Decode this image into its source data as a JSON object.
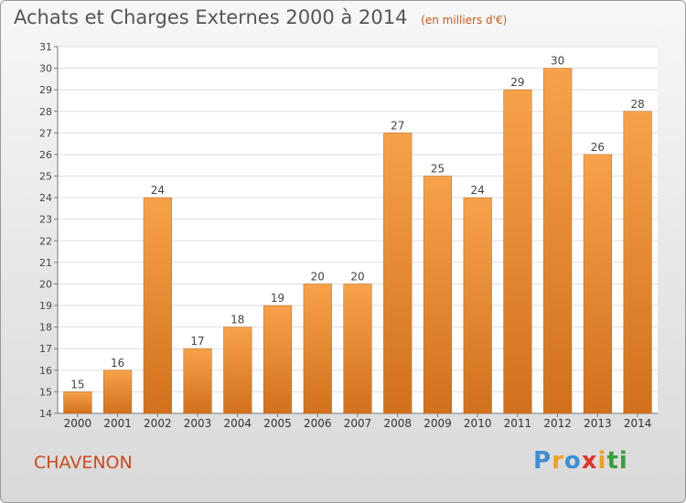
{
  "chart_data": {
    "type": "bar",
    "title": "Achats et Charges Externes 2000 à 2014",
    "subtitle": "(en milliers d'€)",
    "categories": [
      "2000",
      "2001",
      "2002",
      "2003",
      "2004",
      "2005",
      "2006",
      "2007",
      "2008",
      "2009",
      "2010",
      "2011",
      "2012",
      "2013",
      "2014"
    ],
    "values": [
      15,
      16,
      24,
      17,
      18,
      19,
      20,
      20,
      27,
      25,
      24,
      29,
      30,
      26,
      28
    ],
    "ylim": [
      14,
      31
    ],
    "yticks": [
      14,
      15,
      16,
      17,
      18,
      19,
      20,
      21,
      22,
      23,
      24,
      25,
      26,
      27,
      28,
      29,
      30,
      31
    ],
    "grid": true,
    "bar_color": "#f08a2a",
    "xlabel": "",
    "ylabel": ""
  },
  "commune": "CHAVENON",
  "logo": {
    "text": "Proxiti",
    "letters": [
      "P",
      "r",
      "o",
      "x",
      "i",
      "t",
      "i"
    ],
    "colors": [
      "#3a8fd6",
      "#f0a020",
      "#3a8fd6",
      "#e0302a",
      "#f0a020",
      "#3aa03a",
      "#3aa03a"
    ]
  }
}
